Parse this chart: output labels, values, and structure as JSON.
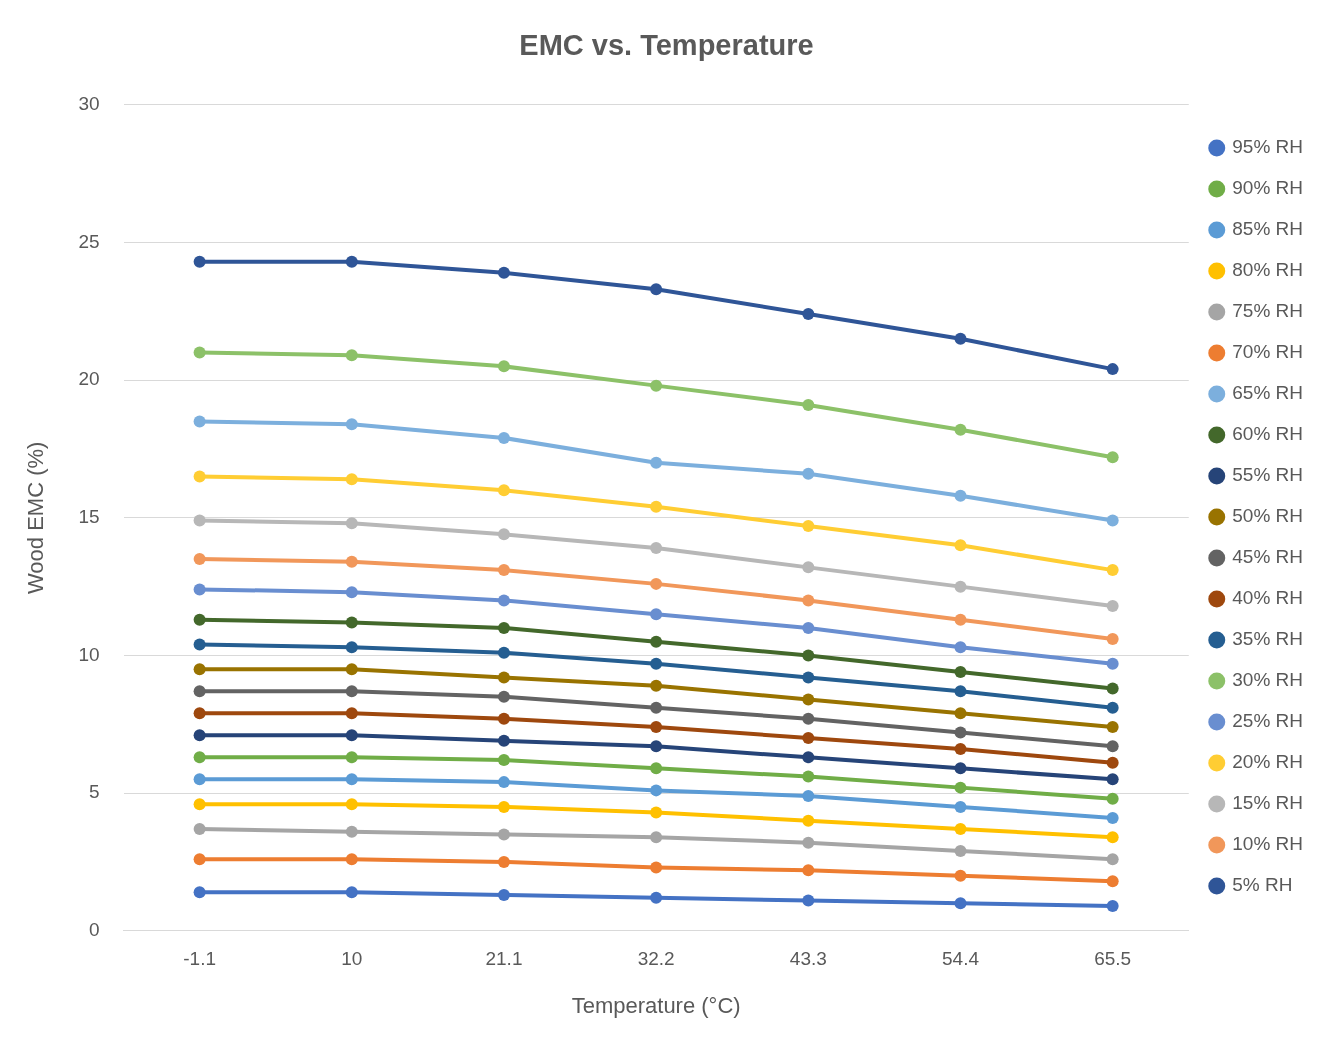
{
  "chart_data": {
    "type": "line",
    "title": "EMC vs. Temperature",
    "xlabel": "Temperature (°C)",
    "ylabel": "Wood EMC (%)",
    "categories": [
      "-1.1",
      "10",
      "21.1",
      "32.2",
      "43.3",
      "54.4",
      "65.5"
    ],
    "ylim": [
      0,
      30
    ],
    "yticks": [
      0,
      5,
      10,
      15,
      20,
      25,
      30
    ],
    "grid": "y",
    "legend": "right",
    "marker": "circle",
    "line_style": "solid",
    "series": [
      {
        "name": "95% RH",
        "color": "#4472c4",
        "values": [
          1.4,
          1.4,
          1.3,
          1.2,
          1.1,
          1.0,
          0.9
        ]
      },
      {
        "name": "90% RH",
        "color": "#70ad47",
        "values": [
          6.3,
          6.3,
          6.2,
          5.9,
          5.6,
          5.2,
          4.8
        ]
      },
      {
        "name": "85% RH",
        "color": "#5b9bd5",
        "values": [
          5.5,
          5.5,
          5.4,
          5.1,
          4.9,
          4.5,
          4.1
        ]
      },
      {
        "name": "80% RH",
        "color": "#ffc000",
        "values": [
          4.6,
          4.6,
          4.5,
          4.3,
          4.0,
          3.7,
          3.4
        ]
      },
      {
        "name": "75% RH",
        "color": "#a5a5a5",
        "values": [
          3.7,
          3.6,
          3.5,
          3.4,
          3.2,
          2.9,
          2.6
        ]
      },
      {
        "name": "70% RH",
        "color": "#ed7d31",
        "values": [
          2.6,
          2.6,
          2.5,
          2.3,
          2.2,
          2.0,
          1.8
        ]
      },
      {
        "name": "65% RH",
        "color": "#7cafdd",
        "values": [
          18.5,
          18.4,
          17.9,
          17.0,
          16.6,
          15.8,
          14.9
        ]
      },
      {
        "name": "60% RH",
        "color": "#43682b",
        "values": [
          11.3,
          11.2,
          11.0,
          10.5,
          10.0,
          9.4,
          8.8
        ]
      },
      {
        "name": "55% RH",
        "color": "#264478",
        "values": [
          7.1,
          7.1,
          6.9,
          6.7,
          6.3,
          5.9,
          5.5
        ]
      },
      {
        "name": "50% RH",
        "color": "#997300",
        "values": [
          9.5,
          9.5,
          9.2,
          8.9,
          8.4,
          7.9,
          7.4
        ]
      },
      {
        "name": "45% RH",
        "color": "#636363",
        "values": [
          8.7,
          8.7,
          8.5,
          8.1,
          7.7,
          7.2,
          6.7
        ]
      },
      {
        "name": "40% RH",
        "color": "#9e480e",
        "values": [
          7.9,
          7.9,
          7.7,
          7.4,
          7.0,
          6.6,
          6.1
        ]
      },
      {
        "name": "35% RH",
        "color": "#255e91",
        "values": [
          10.4,
          10.3,
          10.1,
          9.7,
          9.2,
          8.7,
          8.1
        ]
      },
      {
        "name": "30% RH",
        "color": "#8cc168",
        "values": [
          21.0,
          20.9,
          20.5,
          19.8,
          19.1,
          18.2,
          17.2
        ]
      },
      {
        "name": "25% RH",
        "color": "#698ed0",
        "values": [
          12.4,
          12.3,
          12.0,
          11.5,
          11.0,
          10.3,
          9.7
        ]
      },
      {
        "name": "20% RH",
        "color": "#ffcd33",
        "values": [
          16.5,
          16.4,
          16.0,
          15.4,
          14.7,
          14.0,
          13.1
        ]
      },
      {
        "name": "15% RH",
        "color": "#b7b7b7",
        "values": [
          14.9,
          14.8,
          14.4,
          13.9,
          13.2,
          12.5,
          11.8
        ]
      },
      {
        "name": "10% RH",
        "color": "#f1975a",
        "values": [
          13.5,
          13.4,
          13.1,
          12.6,
          12.0,
          11.3,
          10.6
        ]
      },
      {
        "name": "5% RH",
        "color": "#2f5597",
        "values": [
          24.3,
          24.3,
          23.9,
          23.3,
          22.4,
          21.5,
          20.4
        ]
      }
    ]
  }
}
